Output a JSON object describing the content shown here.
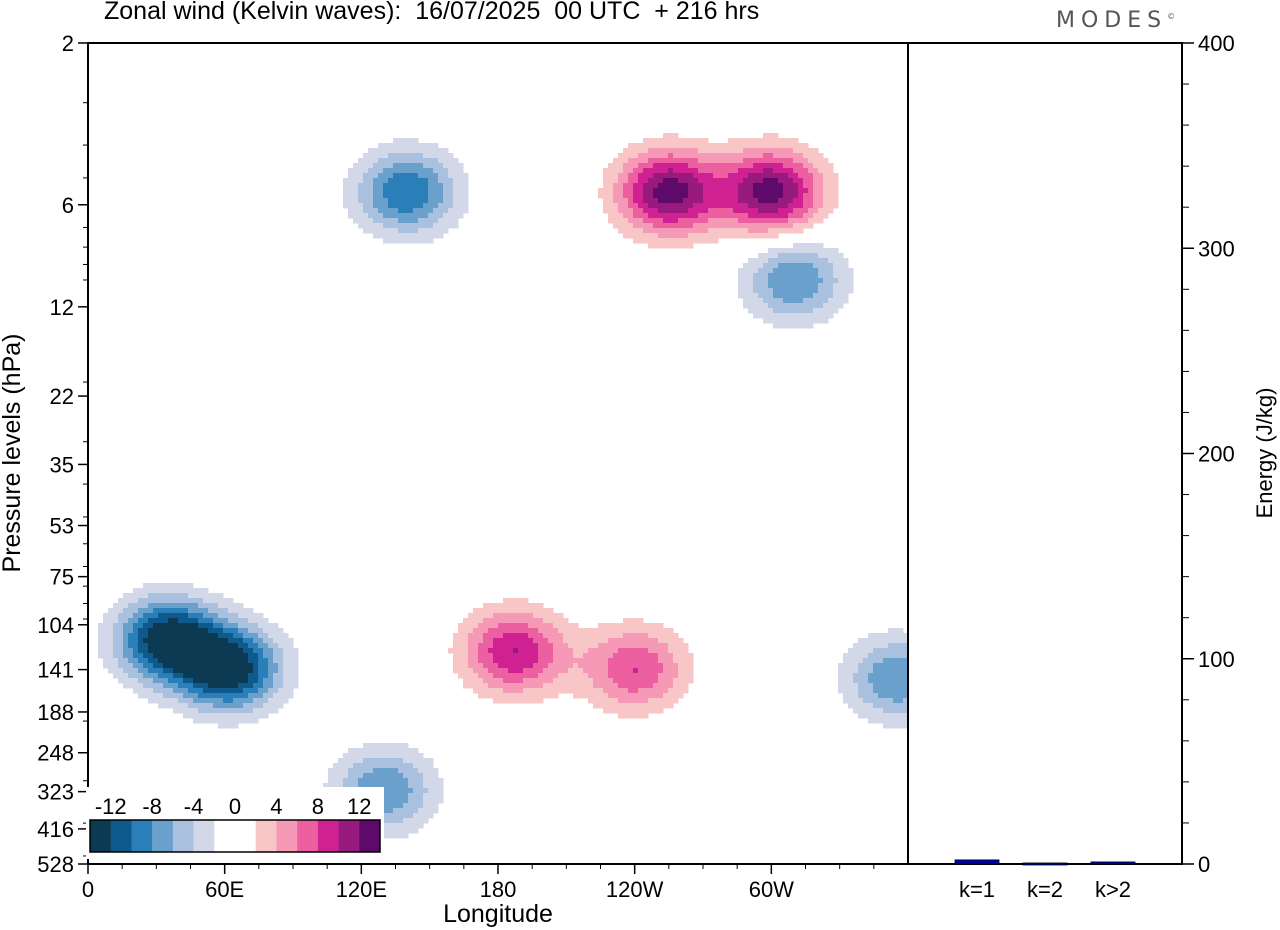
{
  "brand": {
    "name": "MODES",
    "mark": "©"
  },
  "colors": {
    "scale": [
      "#0b3a52",
      "#0f5a8c",
      "#2b7fb8",
      "#6aa0cc",
      "#a9c0de",
      "#d3d8e8",
      "#ffffff",
      "#ffffff",
      "#f8c6c6",
      "#f599b6",
      "#ec5fa0",
      "#cf2191",
      "#991a7e",
      "#5d0a6a"
    ],
    "bar": "#0000a8"
  },
  "chart_data": [
    {
      "type": "heatmap",
      "title": "Zonal wind (Kelvin waves):  16/07/2025  00 UTC  + 216 hrs",
      "xlabel": "Longitude",
      "ylabel": "Pressure levels (hPa)",
      "x_ticks": [
        "0",
        "60E",
        "120E",
        "180",
        "120W",
        "60W"
      ],
      "y_ticks": [
        "2",
        "6",
        "12",
        "22",
        "35",
        "53",
        "75",
        "104",
        "141",
        "188",
        "248",
        "323",
        "416",
        "528"
      ],
      "colorbar": {
        "levels": [
          -14,
          -12,
          -10,
          -8,
          -6,
          -4,
          -2,
          0,
          2,
          4,
          6,
          8,
          10,
          12,
          14
        ],
        "labels": [
          "-12",
          "-8",
          "-4",
          "0",
          "4",
          "8",
          "12"
        ]
      },
      "features": [
        {
          "lon": 35,
          "p": 115,
          "value": -14
        },
        {
          "lon": 62,
          "p": 140,
          "value": -14
        },
        {
          "lon": 130,
          "p": 320,
          "value": -8
        },
        {
          "lon": 187,
          "p": 125,
          "value": 10
        },
        {
          "lon": 240,
          "p": 140,
          "value": 8
        },
        {
          "lon": 255,
          "p": 5.5,
          "value": 13
        },
        {
          "lon": 300,
          "p": 5.5,
          "value": 13
        },
        {
          "lon": 140,
          "p": 5.5,
          "value": -10
        },
        {
          "lon": 310,
          "p": 10,
          "value": -8
        },
        {
          "lon": 355,
          "p": 150,
          "value": -8
        }
      ]
    },
    {
      "type": "bar",
      "categories": [
        "k=1",
        "k=2",
        "k>2"
      ],
      "values": [
        2,
        0.5,
        1
      ],
      "ylabel": "Energy (J/kg)",
      "ylim": [
        0,
        400
      ],
      "yticks": [
        "0",
        "100",
        "200",
        "300",
        "400"
      ]
    }
  ]
}
